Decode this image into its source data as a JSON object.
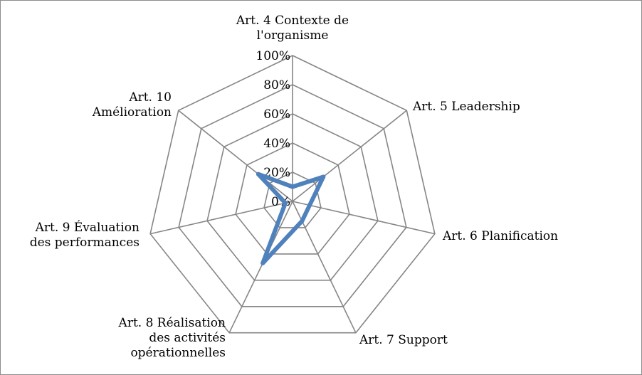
{
  "chart_data": {
    "type": "radar",
    "categories": [
      "Art. 4 Contexte de l'organisme",
      "Art. 5 Leadership",
      "Art. 6 Planification",
      "Art. 7 Support",
      "Art. 8 Réalisation des activités opérationnelles",
      "Art. 9 Évaluation des performances",
      "Art. 10 Amélioration"
    ],
    "category_lines": [
      [
        "Art. 4 Contexte de",
        "l'organisme"
      ],
      [
        "Art. 5 Leadership"
      ],
      [
        "Art. 6 Planification"
      ],
      [
        "Art. 7 Support"
      ],
      [
        "Art. 8 Réalisation",
        "des activités",
        "opérationnelles"
      ],
      [
        "Art. 9 Évaluation",
        "des performances"
      ],
      [
        "Art. 10",
        "Amélioration"
      ]
    ],
    "series": [
      {
        "values": [
          0.1,
          0.27,
          0.12,
          0.15,
          0.47,
          0.05,
          0.3
        ]
      }
    ],
    "rlim": [
      0,
      1
    ],
    "r_ticks": [
      0,
      0.2,
      0.4,
      0.6,
      0.8,
      1.0
    ],
    "r_tick_labels": [
      "0%",
      "20%",
      "40%",
      "60%",
      "80%",
      "100%"
    ],
    "grid": true,
    "colors": {
      "series": "#4f81bd",
      "grid": "#868686"
    }
  }
}
